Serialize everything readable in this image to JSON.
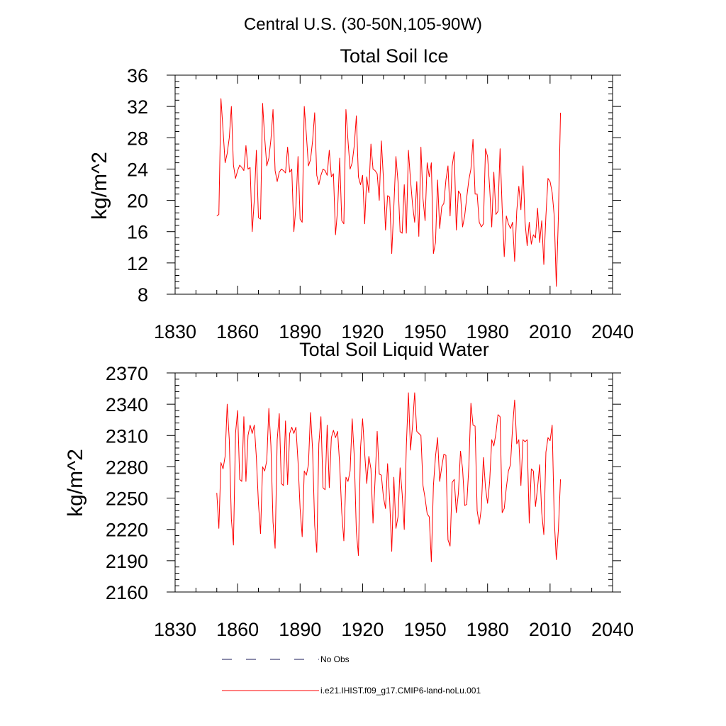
{
  "figure": {
    "title": "Central U.S. (30-50N,105-90W)"
  },
  "legend": {
    "obs_label": "No Obs",
    "model_label": "i.e21.IHIST.f09_g17.CMIP6-land-noLu.001",
    "obs_color": "#1a1a5a",
    "model_color": "#ff0000"
  },
  "chart_data": [
    {
      "type": "line",
      "title": "Total Soil Ice",
      "xlabel": "",
      "ylabel": "kg/m^2",
      "xlim": [
        1830,
        2040
      ],
      "ylim": [
        8,
        36
      ],
      "x_ticks": [
        1830,
        1860,
        1890,
        1920,
        1950,
        1980,
        2010,
        2040
      ],
      "y_ticks": [
        8,
        12,
        16,
        20,
        24,
        28,
        32,
        36
      ],
      "grid": false,
      "series": [
        {
          "name": "i.e21.IHIST.f09_g17.CMIP6-land-noLu.001",
          "color": "#ff0000",
          "x_start": 1850,
          "x_step": 1,
          "values": [
            18.0,
            18.2,
            33.0,
            29.0,
            24.8,
            26.0,
            28.0,
            32.0,
            24.5,
            22.8,
            23.8,
            24.5,
            24.2,
            23.8,
            27.0,
            24.0,
            24.2,
            16.0,
            20.0,
            26.4,
            17.8,
            17.6,
            32.4,
            28.0,
            24.4,
            25.4,
            27.8,
            31.6,
            23.8,
            22.4,
            23.6,
            24.0,
            23.8,
            23.5,
            26.8,
            23.6,
            24.0,
            16.0,
            19.2,
            25.6,
            17.6,
            17.2,
            32.0,
            28.4,
            24.4,
            25.2,
            27.6,
            31.2,
            23.2,
            22.0,
            23.2,
            24.0,
            23.8,
            23.2,
            26.4,
            23.0,
            23.4,
            15.6,
            18.8,
            25.4,
            17.4,
            17.0,
            31.6,
            27.6,
            24.0,
            24.8,
            27.0,
            30.8,
            23.0,
            22.0,
            23.2,
            17.0,
            23.0,
            21.0,
            27.2,
            24.0,
            23.8,
            23.4,
            20.0,
            27.6,
            22.8,
            16.2,
            20.6,
            20.4,
            13.2,
            19.2,
            25.6,
            22.4,
            16.0,
            15.8,
            22.0,
            15.8,
            26.4,
            22.6,
            19.4,
            17.2,
            22.4,
            15.4,
            26.8,
            20.2,
            17.4,
            24.8,
            23.0,
            24.8,
            13.2,
            14.6,
            22.6,
            16.4,
            19.2,
            19.6,
            22.6,
            24.4,
            18.0,
            24.4,
            26.2,
            16.2,
            21.2,
            20.8,
            16.6,
            18.0,
            20.4,
            22.6,
            24.0,
            27.8,
            20.8,
            20.8,
            17.2,
            16.6,
            17.0,
            26.6,
            25.6,
            21.6,
            16.6,
            23.6,
            18.2,
            18.6,
            26.6,
            19.0,
            12.8,
            18.0,
            17.0,
            16.4,
            17.2,
            12.2,
            18.6,
            21.8,
            18.8,
            24.4,
            17.2,
            14.2,
            17.2,
            14.4,
            15.6,
            15.2,
            19.0,
            14.6,
            17.4,
            11.8,
            18.0,
            22.8,
            22.4,
            21.0,
            18.0,
            9.0,
            18.0,
            31.2
          ]
        }
      ]
    },
    {
      "type": "line",
      "title": "Total Soil Liquid Water",
      "xlabel": "",
      "ylabel": "kg/m^2",
      "xlim": [
        1830,
        2040
      ],
      "ylim": [
        2160,
        2370
      ],
      "x_ticks": [
        1830,
        1860,
        1890,
        1920,
        1950,
        1980,
        2010,
        2040
      ],
      "y_ticks": [
        2160,
        2190,
        2220,
        2250,
        2280,
        2310,
        2340,
        2370
      ],
      "grid": false,
      "series": [
        {
          "name": "i.e21.IHIST.f09_g17.CMIP6-land-noLu.001",
          "color": "#ff0000",
          "x_start": 1850,
          "x_step": 1,
          "values": [
            2255,
            2221,
            2284,
            2278,
            2290,
            2340,
            2306,
            2230,
            2205,
            2312,
            2334,
            2268,
            2266,
            2328,
            2266,
            2310,
            2320,
            2312,
            2320,
            2289,
            2245,
            2216,
            2280,
            2276,
            2286,
            2336,
            2300,
            2227,
            2202,
            2306,
            2331,
            2264,
            2262,
            2324,
            2263,
            2312,
            2318,
            2312,
            2318,
            2285,
            2240,
            2213,
            2276,
            2272,
            2282,
            2332,
            2296,
            2224,
            2198,
            2302,
            2328,
            2260,
            2258,
            2320,
            2260,
            2308,
            2315,
            2308,
            2314,
            2282,
            2236,
            2209,
            2270,
            2266,
            2276,
            2326,
            2290,
            2218,
            2195,
            2298,
            2326,
            2293,
            2264,
            2290,
            2278,
            2226,
            2268,
            2314,
            2273,
            2272,
            2251,
            2240,
            2283,
            2248,
            2199,
            2270,
            2221,
            2232,
            2279,
            2254,
            2220,
            2300,
            2351,
            2296,
            2320,
            2351,
            2314,
            2312,
            2310,
            2262,
            2250,
            2235,
            2232,
            2189,
            2262,
            2290,
            2308,
            2266,
            2280,
            2292,
            2291,
            2210,
            2204,
            2265,
            2268,
            2236,
            2255,
            2295,
            2278,
            2243,
            2244,
            2280,
            2341,
            2320,
            2319,
            2238,
            2225,
            2240,
            2289,
            2260,
            2245,
            2266,
            2306,
            2300,
            2312,
            2330,
            2328,
            2236,
            2240,
            2260,
            2276,
            2282,
            2318,
            2344,
            2302,
            2306,
            2262,
            2306,
            2304,
            2306,
            2226,
            2278,
            2276,
            2242,
            2260,
            2282,
            2236,
            2215,
            2294,
            2308,
            2305,
            2320,
            2230,
            2191,
            2220,
            2268
          ]
        }
      ]
    }
  ]
}
